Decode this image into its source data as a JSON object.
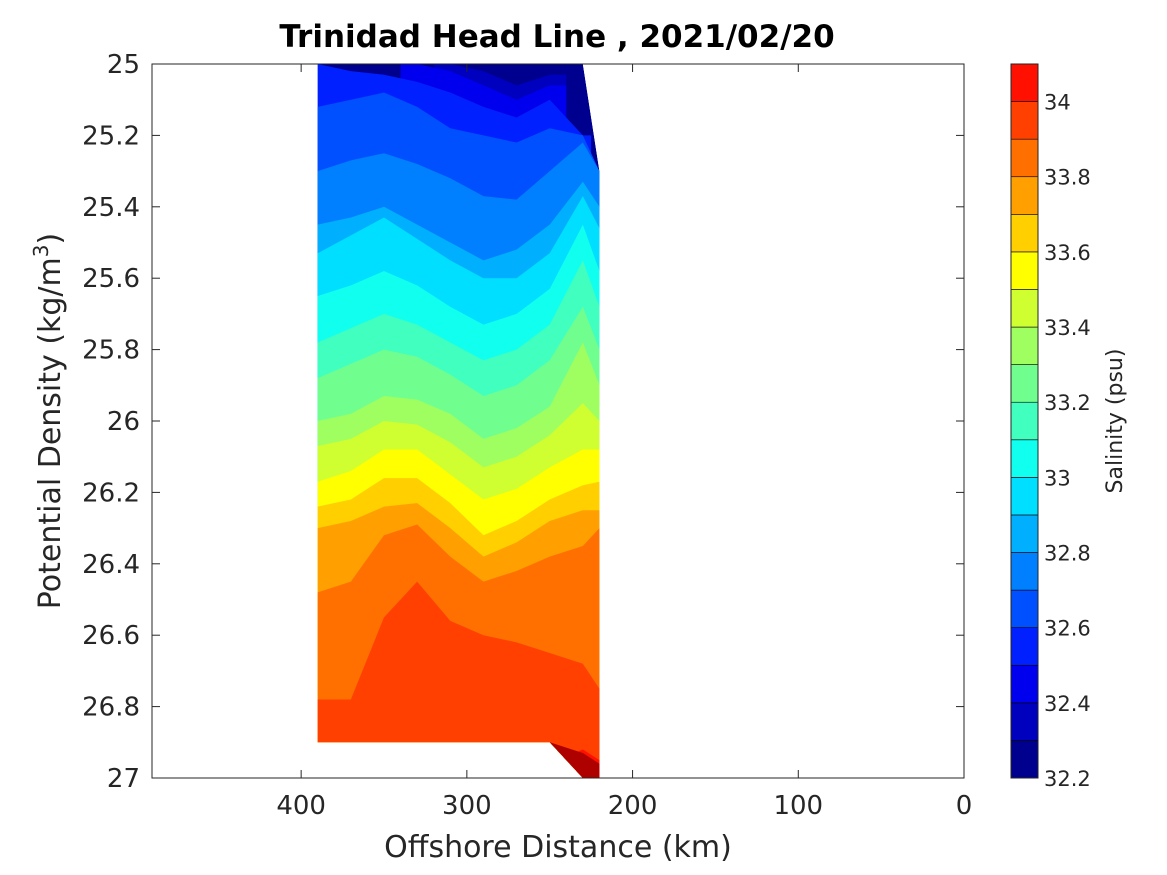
{
  "chart_data": {
    "type": "heatmap",
    "subtype": "filled-contour",
    "title": "Trinidad Head Line , 2021/02/20",
    "xlabel": "Offshore Distance (km)",
    "ylabel_main": "Potential Density (kg/m",
    "ylabel_sup": "3",
    "ylabel_close": ")",
    "x_axis": {
      "range": [
        490,
        0
      ],
      "reversed": true,
      "ticks": [
        400,
        300,
        200,
        100,
        0
      ],
      "tick_labels": [
        "400",
        "300",
        "200",
        "100",
        "0"
      ]
    },
    "y_axis": {
      "range": [
        25,
        27
      ],
      "reversed": true,
      "ticks": [
        25,
        25.2,
        25.4,
        25.6,
        25.8,
        26,
        26.2,
        26.4,
        26.6,
        26.8,
        27
      ],
      "tick_labels": [
        "25",
        "25.2",
        "25.4",
        "25.6",
        "25.8",
        "26",
        "26.2",
        "26.4",
        "26.6",
        "26.8",
        "27"
      ]
    },
    "colorbar": {
      "label": "Salinity (psu)",
      "range": [
        32.2,
        34.1
      ],
      "ticks": [
        32.2,
        32.4,
        32.6,
        32.8,
        33,
        33.2,
        33.4,
        33.6,
        33.8,
        34
      ],
      "tick_labels": [
        "32.2",
        "32.4",
        "32.6",
        "32.8",
        "33",
        "33.2",
        "33.4",
        "33.6",
        "33.8",
        "34"
      ],
      "levels": [
        32.2,
        32.3,
        32.4,
        32.5,
        32.6,
        32.7,
        32.8,
        32.9,
        33.0,
        33.1,
        33.2,
        33.3,
        33.4,
        33.5,
        33.6,
        33.7,
        33.8,
        33.9,
        34.0,
        34.1
      ],
      "colors": [
        "#00008f",
        "#0000bf",
        "#0000ef",
        "#0020ff",
        "#0050ff",
        "#0080ff",
        "#00b0ff",
        "#00dfff",
        "#10ffef",
        "#40ffbf",
        "#70ff8f",
        "#9fff60",
        "#cfff30",
        "#ffff00",
        "#ffcf00",
        "#ff9f00",
        "#ff7000",
        "#ff4000",
        "#ff1000",
        "#df0000",
        "#af0000"
      ]
    },
    "data_extent": {
      "x_stations": [
        390,
        370,
        350,
        330,
        310,
        290,
        270,
        250,
        230,
        220
      ],
      "bottom_sigma": [
        26.9,
        26.9,
        26.9,
        26.9,
        26.9,
        26.9,
        26.9,
        26.9,
        27.0,
        27.0
      ],
      "top_sigma": [
        25.0,
        25.0,
        25.0,
        25.0,
        25.0,
        25.0,
        25.0,
        25.0,
        25.0,
        25.3
      ]
    },
    "contours": [
      {
        "level": 32.3,
        "y": [
          null,
          null,
          null,
          null,
          25.0,
          25.02,
          25.06,
          25.03,
          null,
          null
        ]
      },
      {
        "level": 32.4,
        "y": [
          null,
          null,
          null,
          25.0,
          25.02,
          25.06,
          25.1,
          25.06,
          null,
          null
        ]
      },
      {
        "level": 32.5,
        "y": [
          25.0,
          25.02,
          25.03,
          25.05,
          25.08,
          25.12,
          25.15,
          25.1,
          25.2,
          null
        ]
      },
      {
        "level": 32.6,
        "y": [
          25.12,
          25.1,
          25.08,
          25.12,
          25.18,
          25.2,
          25.22,
          25.18,
          25.2,
          25.3
        ]
      },
      {
        "level": 32.7,
        "y": [
          25.3,
          25.27,
          25.25,
          25.28,
          25.32,
          25.37,
          25.38,
          25.3,
          25.22,
          25.3
        ]
      },
      {
        "level": 32.8,
        "y": [
          25.45,
          25.43,
          25.4,
          25.45,
          25.5,
          25.55,
          25.52,
          25.45,
          25.33,
          25.4
        ]
      },
      {
        "level": 32.9,
        "y": [
          25.53,
          25.48,
          25.43,
          25.49,
          25.55,
          25.6,
          25.6,
          25.53,
          25.37,
          25.46
        ]
      },
      {
        "level": 33.0,
        "y": [
          25.65,
          25.62,
          25.58,
          25.62,
          25.68,
          25.73,
          25.7,
          25.63,
          25.45,
          25.58
        ]
      },
      {
        "level": 33.1,
        "y": [
          25.78,
          25.74,
          25.7,
          25.73,
          25.78,
          25.83,
          25.8,
          25.73,
          25.55,
          25.68
        ]
      },
      {
        "level": 33.2,
        "y": [
          25.88,
          25.84,
          25.8,
          25.82,
          25.87,
          25.93,
          25.9,
          25.83,
          25.68,
          25.8
        ]
      },
      {
        "level": 33.3,
        "y": [
          26.0,
          25.98,
          25.93,
          25.94,
          25.98,
          26.05,
          26.02,
          25.96,
          25.78,
          25.9
        ]
      },
      {
        "level": 33.4,
        "y": [
          26.07,
          26.05,
          26.0,
          26.01,
          26.06,
          26.13,
          26.1,
          26.04,
          25.95,
          26.0
        ]
      },
      {
        "level": 33.5,
        "y": [
          26.17,
          26.14,
          26.08,
          26.08,
          26.15,
          26.22,
          26.19,
          26.13,
          26.08,
          26.08
        ]
      },
      {
        "level": 33.6,
        "y": [
          26.24,
          26.22,
          26.16,
          26.16,
          26.23,
          26.32,
          26.28,
          26.22,
          26.18,
          26.17
        ]
      },
      {
        "level": 33.7,
        "y": [
          26.3,
          26.28,
          26.24,
          26.23,
          26.3,
          26.38,
          26.34,
          26.28,
          26.25,
          26.25
        ]
      },
      {
        "level": 33.8,
        "y": [
          26.48,
          26.45,
          26.32,
          26.29,
          26.38,
          26.45,
          26.42,
          26.38,
          26.35,
          26.3
        ]
      },
      {
        "level": 33.9,
        "y": [
          26.78,
          26.78,
          26.55,
          26.45,
          26.56,
          26.6,
          26.62,
          26.65,
          26.68,
          26.75
        ]
      },
      {
        "level": 34.0,
        "y": [
          null,
          null,
          null,
          null,
          null,
          null,
          null,
          26.96,
          26.92,
          26.95
        ]
      }
    ]
  }
}
